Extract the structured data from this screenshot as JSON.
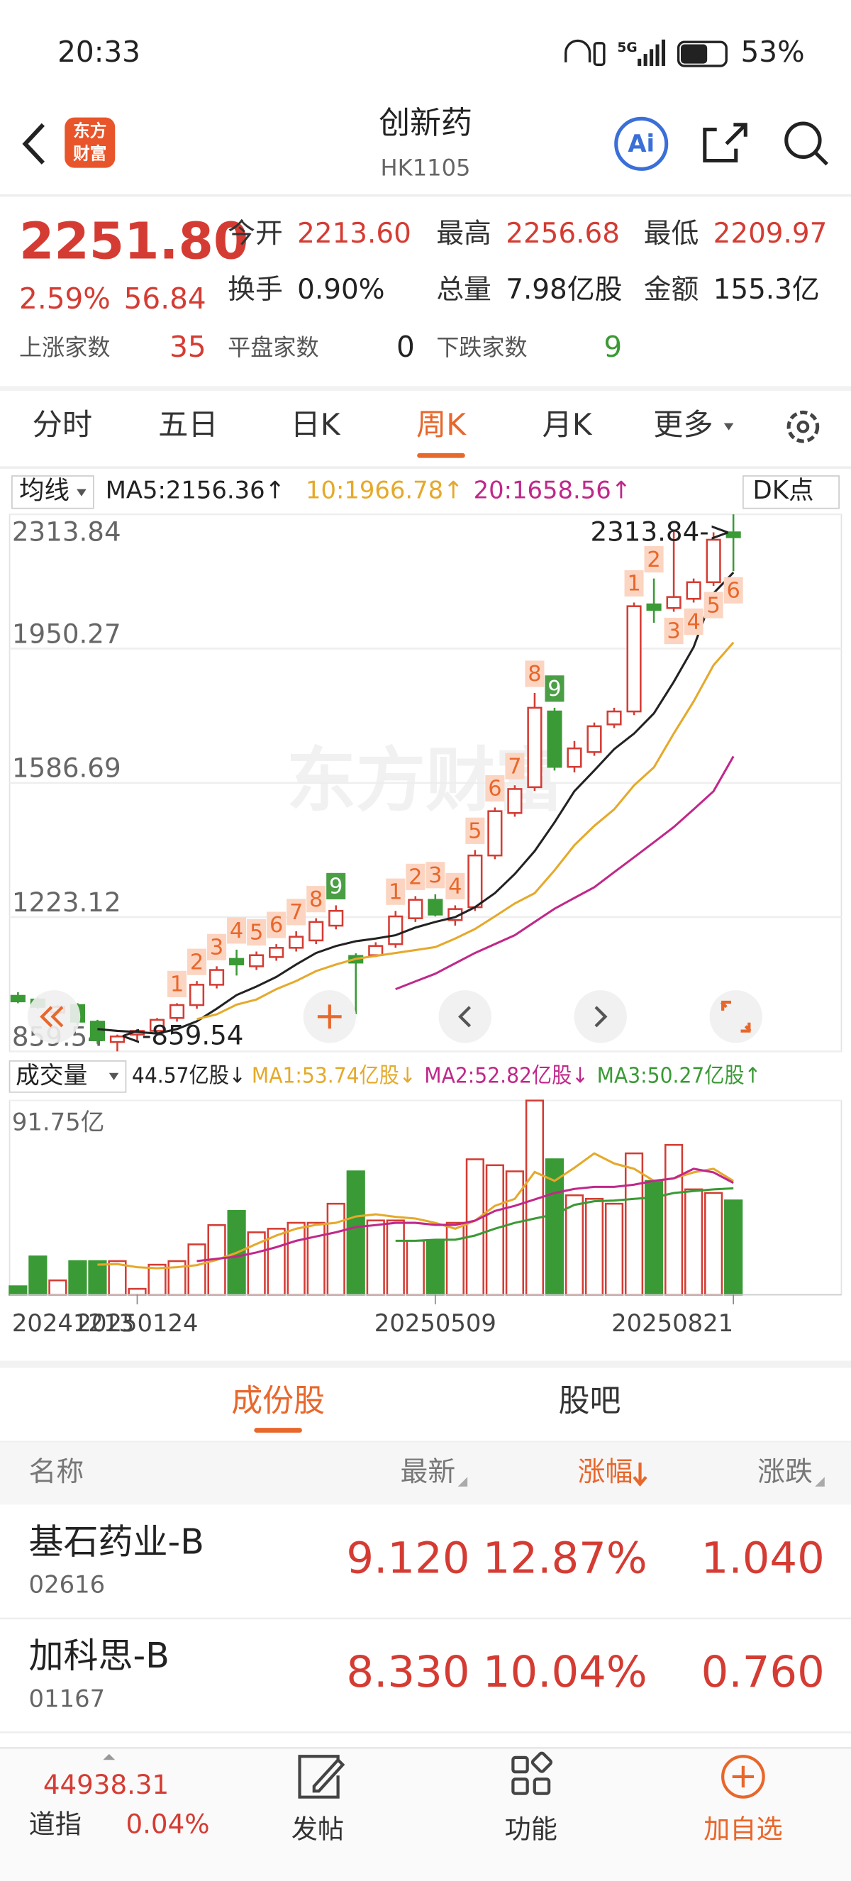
{
  "status_bar": {
    "time": "20:33",
    "network": "5G",
    "battery": "53%"
  },
  "header": {
    "logo": [
      "东方",
      "财富"
    ],
    "title": "创新药",
    "code": "HK1105",
    "assistant": "Ai"
  },
  "quote": {
    "price": "2251.80",
    "change_percent": "2.59%",
    "change": "56.84",
    "stats": [
      [
        {
          "label": "今开",
          "value": "2213.60",
          "color": "#d43c33"
        },
        {
          "label": "最高",
          "value": "2256.68",
          "color": "#d43c33"
        },
        {
          "label": "最低",
          "value": "2209.97",
          "color": "#d43c33"
        }
      ],
      [
        {
          "label": "换手",
          "value": "0.90%",
          "color": "#222222"
        },
        {
          "label": "总量",
          "value": "7.98亿股",
          "color": "#222222"
        },
        {
          "label": "金额",
          "value": "155.3亿",
          "color": "#222222"
        }
      ]
    ],
    "breadth": [
      {
        "label": "上涨家数",
        "value": "35",
        "color": "#d43c33"
      },
      {
        "label": "平盘家数",
        "value": "0",
        "color": "#222222"
      },
      {
        "label": "下跌家数",
        "value": "9",
        "color": "#3a9a35"
      }
    ]
  },
  "period_tabs": {
    "items": [
      "分时",
      "五日",
      "日K",
      "周K",
      "月K",
      "更多"
    ],
    "active": 3
  },
  "chart_data": [
    {
      "type": "candlestick",
      "indicator": "均线",
      "overlay": "DK点",
      "watermark": "东方财富",
      "ma": [
        {
          "label": "MA5:2156.36↑",
          "color": "#222222",
          "values": [
            null,
            null,
            null,
            null,
            920,
            915,
            912,
            908,
            920,
            941,
            975,
            1012,
            1035,
            1061,
            1095,
            1126,
            1145,
            1158,
            1165,
            1174,
            1195,
            1210,
            1223,
            1250,
            1288,
            1340,
            1402,
            1480,
            1564,
            1620,
            1678,
            1720,
            1775,
            1860,
            1954,
            2100,
            2156.36
          ]
        },
        {
          "label": "10:1966.78↑",
          "color": "#e5a92a",
          "values": [
            null,
            null,
            null,
            null,
            null,
            null,
            null,
            null,
            null,
            947,
            960,
            986,
            1000,
            1028,
            1050,
            1077,
            1095,
            1110,
            1118,
            1126,
            1134,
            1142,
            1165,
            1191,
            1225,
            1260,
            1288,
            1350,
            1418,
            1470,
            1515,
            1580,
            1629,
            1720,
            1807,
            1905,
            1966.78
          ]
        },
        {
          "label": "20:1658.56↑",
          "color": "#c0288a",
          "values": [
            null,
            null,
            null,
            null,
            null,
            null,
            null,
            null,
            null,
            null,
            null,
            null,
            null,
            null,
            null,
            null,
            null,
            null,
            null,
            1028,
            1049,
            1070,
            1098,
            1126,
            1150,
            1174,
            1210,
            1246,
            1275,
            1304,
            1345,
            1385,
            1426,
            1467,
            1515,
            1564,
            1658.56
          ]
        }
      ],
      "open": [
        1010,
        1000,
        965,
        985,
        940,
        885,
        905,
        915,
        950,
        985,
        1040,
        1110,
        1090,
        1115,
        1140,
        1160,
        1200,
        1118,
        1120,
        1150,
        1220,
        1270,
        1215,
        1250,
        1390,
        1505,
        1575,
        1780,
        1630,
        1670,
        1745,
        1780,
        2070,
        2060,
        2085,
        2130,
        2265
      ],
      "high": [
        1020,
        1005,
        985,
        990,
        945,
        905,
        920,
        950,
        990,
        1050,
        1090,
        1135,
        1130,
        1150,
        1185,
        1220,
        1255,
        1125,
        1155,
        1240,
        1280,
        1285,
        1255,
        1405,
        1520,
        1580,
        1830,
        1790,
        1700,
        1750,
        1790,
        2075,
        2140,
        2270,
        2140,
        2265,
        2313.84
      ],
      "low": [
        990,
        975,
        960,
        930,
        880,
        859.54,
        890,
        905,
        940,
        975,
        1030,
        1065,
        1080,
        1105,
        1130,
        1150,
        1190,
        960,
        1115,
        1140,
        1210,
        1225,
        1200,
        1240,
        1380,
        1495,
        1565,
        1620,
        1615,
        1660,
        1735,
        1770,
        2020,
        2050,
        2075,
        2120,
        2160
      ],
      "close": [
        995,
        980,
        980,
        940,
        890,
        900,
        915,
        945,
        985,
        1040,
        1080,
        1095,
        1120,
        1140,
        1170,
        1210,
        1240,
        1100,
        1145,
        1225,
        1270,
        1230,
        1245,
        1390,
        1510,
        1570,
        1790,
        1630,
        1680,
        1740,
        1780,
        2065,
        2055,
        2090,
        2130,
        2245,
        2251.8
      ],
      "td_labels": [
        null,
        null,
        null,
        null,
        null,
        null,
        null,
        null,
        1,
        2,
        3,
        4,
        5,
        6,
        7,
        8,
        9,
        null,
        null,
        1,
        2,
        3,
        4,
        5,
        6,
        7,
        8,
        9,
        null,
        null,
        null,
        1,
        2,
        3,
        4,
        5,
        6
      ],
      "up_color": "#d43c33",
      "down_color": "#3a9a35",
      "ylim": [
        859.54,
        2313.84
      ],
      "yticks": [
        859.54,
        1223.12,
        1586.69,
        1950.27,
        2313.84
      ],
      "grid": true,
      "annotations": [
        "2313.84->",
        "<-859.54"
      ]
    },
    {
      "type": "bar",
      "indicator": "成交量",
      "current_label": "44.57亿股↓",
      "ma": [
        {
          "label": "MA1:53.74亿股↓",
          "color": "#e5a92a",
          "values": [
            null,
            null,
            null,
            null,
            14.2,
            14.5,
            13,
            12.5,
            13,
            14,
            16.5,
            19.8,
            24,
            28,
            31.2,
            33,
            34,
            37,
            38,
            36.8,
            36,
            34,
            31.2,
            35,
            42,
            45.3,
            58,
            53.8,
            60,
            66.8,
            62,
            59.5,
            53.8,
            55,
            57.8,
            59.5,
            53.74
          ]
        },
        {
          "label": "MA2:52.82亿股↓",
          "color": "#c0288a",
          "values": [
            null,
            null,
            null,
            null,
            null,
            null,
            null,
            null,
            null,
            15.9,
            17,
            18,
            20,
            22.5,
            25.5,
            27.5,
            29.5,
            32,
            32.9,
            34,
            34,
            33,
            33,
            35,
            39.6,
            42,
            45,
            48.1,
            50,
            51,
            51,
            52,
            53.8,
            55,
            59.5,
            57.8,
            52.82
          ]
        },
        {
          "label": "MA3:50.27亿股↑",
          "color": "#3a9a35",
          "values": [
            null,
            null,
            null,
            null,
            null,
            null,
            null,
            null,
            null,
            null,
            null,
            null,
            null,
            null,
            null,
            null,
            null,
            null,
            null,
            25.5,
            25.5,
            26,
            26,
            28,
            31.2,
            34,
            36,
            38,
            42.5,
            44.2,
            44.5,
            45.3,
            46,
            48.1,
            49,
            49.8,
            50.27
          ]
        }
      ],
      "values": [
        4,
        18.1,
        6.8,
        15.9,
        15.9,
        15.9,
        2.8,
        14.2,
        15.9,
        23.8,
        32.9,
        39.6,
        29.5,
        31.2,
        34,
        34,
        43,
        58.3,
        35.1,
        35.1,
        25.5,
        25.5,
        34,
        64,
        61.2,
        58.3,
        91.75,
        64,
        47,
        45.3,
        43,
        66.8,
        53.8,
        70.8,
        49.8,
        48.1,
        44.57
      ],
      "categories": [
        "20241213",
        null,
        null,
        null,
        null,
        null,
        "20250124",
        null,
        null,
        null,
        null,
        null,
        null,
        null,
        null,
        null,
        null,
        null,
        null,
        null,
        null,
        "20250509",
        null,
        null,
        null,
        null,
        null,
        null,
        null,
        null,
        null,
        null,
        null,
        null,
        null,
        null,
        "20250821"
      ],
      "ylim": [
        0,
        91.75
      ],
      "yticks": [
        {
          "value": 91.75,
          "label": "91.75亿"
        }
      ],
      "grid": true
    }
  ],
  "list_tabs": {
    "items": [
      "成份股",
      "股吧"
    ],
    "active": 0
  },
  "table": {
    "columns": [
      "名称",
      "最新",
      "涨幅",
      "涨跌"
    ],
    "sort_column": 2,
    "rows": [
      {
        "name": "基石药业-B",
        "code": "02616",
        "values": [
          "9.120",
          "12.87%",
          "1.040"
        ]
      },
      {
        "name": "加科思-B",
        "code": "01167",
        "values": [
          "8.330",
          "10.04%",
          "0.760"
        ]
      }
    ]
  },
  "bottom_bar": {
    "index_value": "44938.31",
    "index_name": "道指",
    "index_change": "0.04%",
    "actions": [
      "发帖",
      "功能",
      "加自选"
    ]
  }
}
